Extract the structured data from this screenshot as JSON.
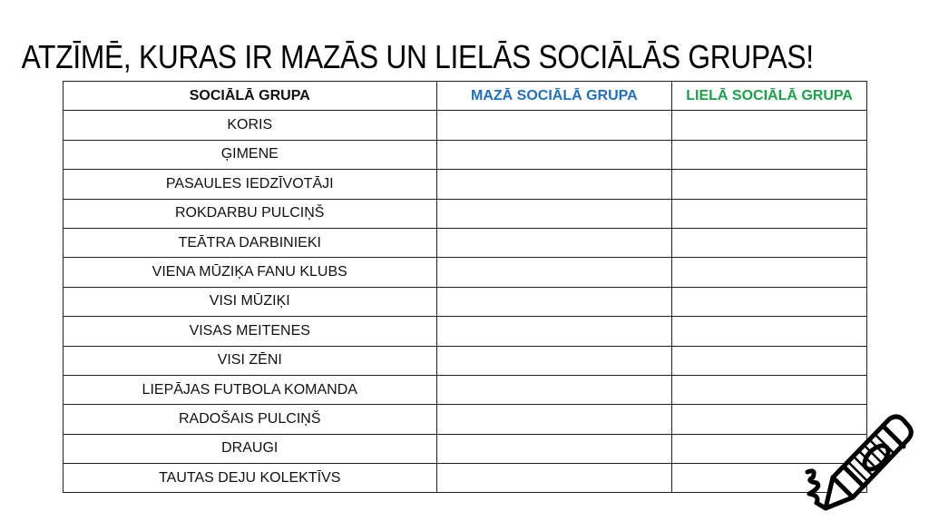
{
  "title": "ATZĪMĒ, KURAS IR MAZĀS UN LIELĀS SOCIĀLĀS GRUPAS!",
  "table": {
    "headers": [
      "SOCIĀLĀ GRUPA",
      "MAZĀ SOCIĀLĀ GRUPA",
      "LIELĀ SOCIĀLĀ GRUPA"
    ],
    "header_colors": [
      "#000000",
      "#1f6fc2",
      "#1aa24a"
    ],
    "rows": [
      "KORIS",
      "ĢIMENE",
      "PASAULES IEDZĪVOTĀJI",
      "ROKDARBU PULCIŅŠ",
      "TEĀTRA DARBINIEKI",
      "VIENA MŪZIĶA FANU KLUBS",
      "VISI MŪZIĶI",
      "VISAS MEITENES",
      "VISI ZĒNI",
      "LIEPĀJAS FUTBOLA KOMANDA",
      "RADOŠAIS PULCIŅŠ",
      "DRAUGI",
      "TAUTAS DEJU KOLEKTĪVS"
    ]
  },
  "decoration": {
    "icon": "crayon-icon"
  }
}
